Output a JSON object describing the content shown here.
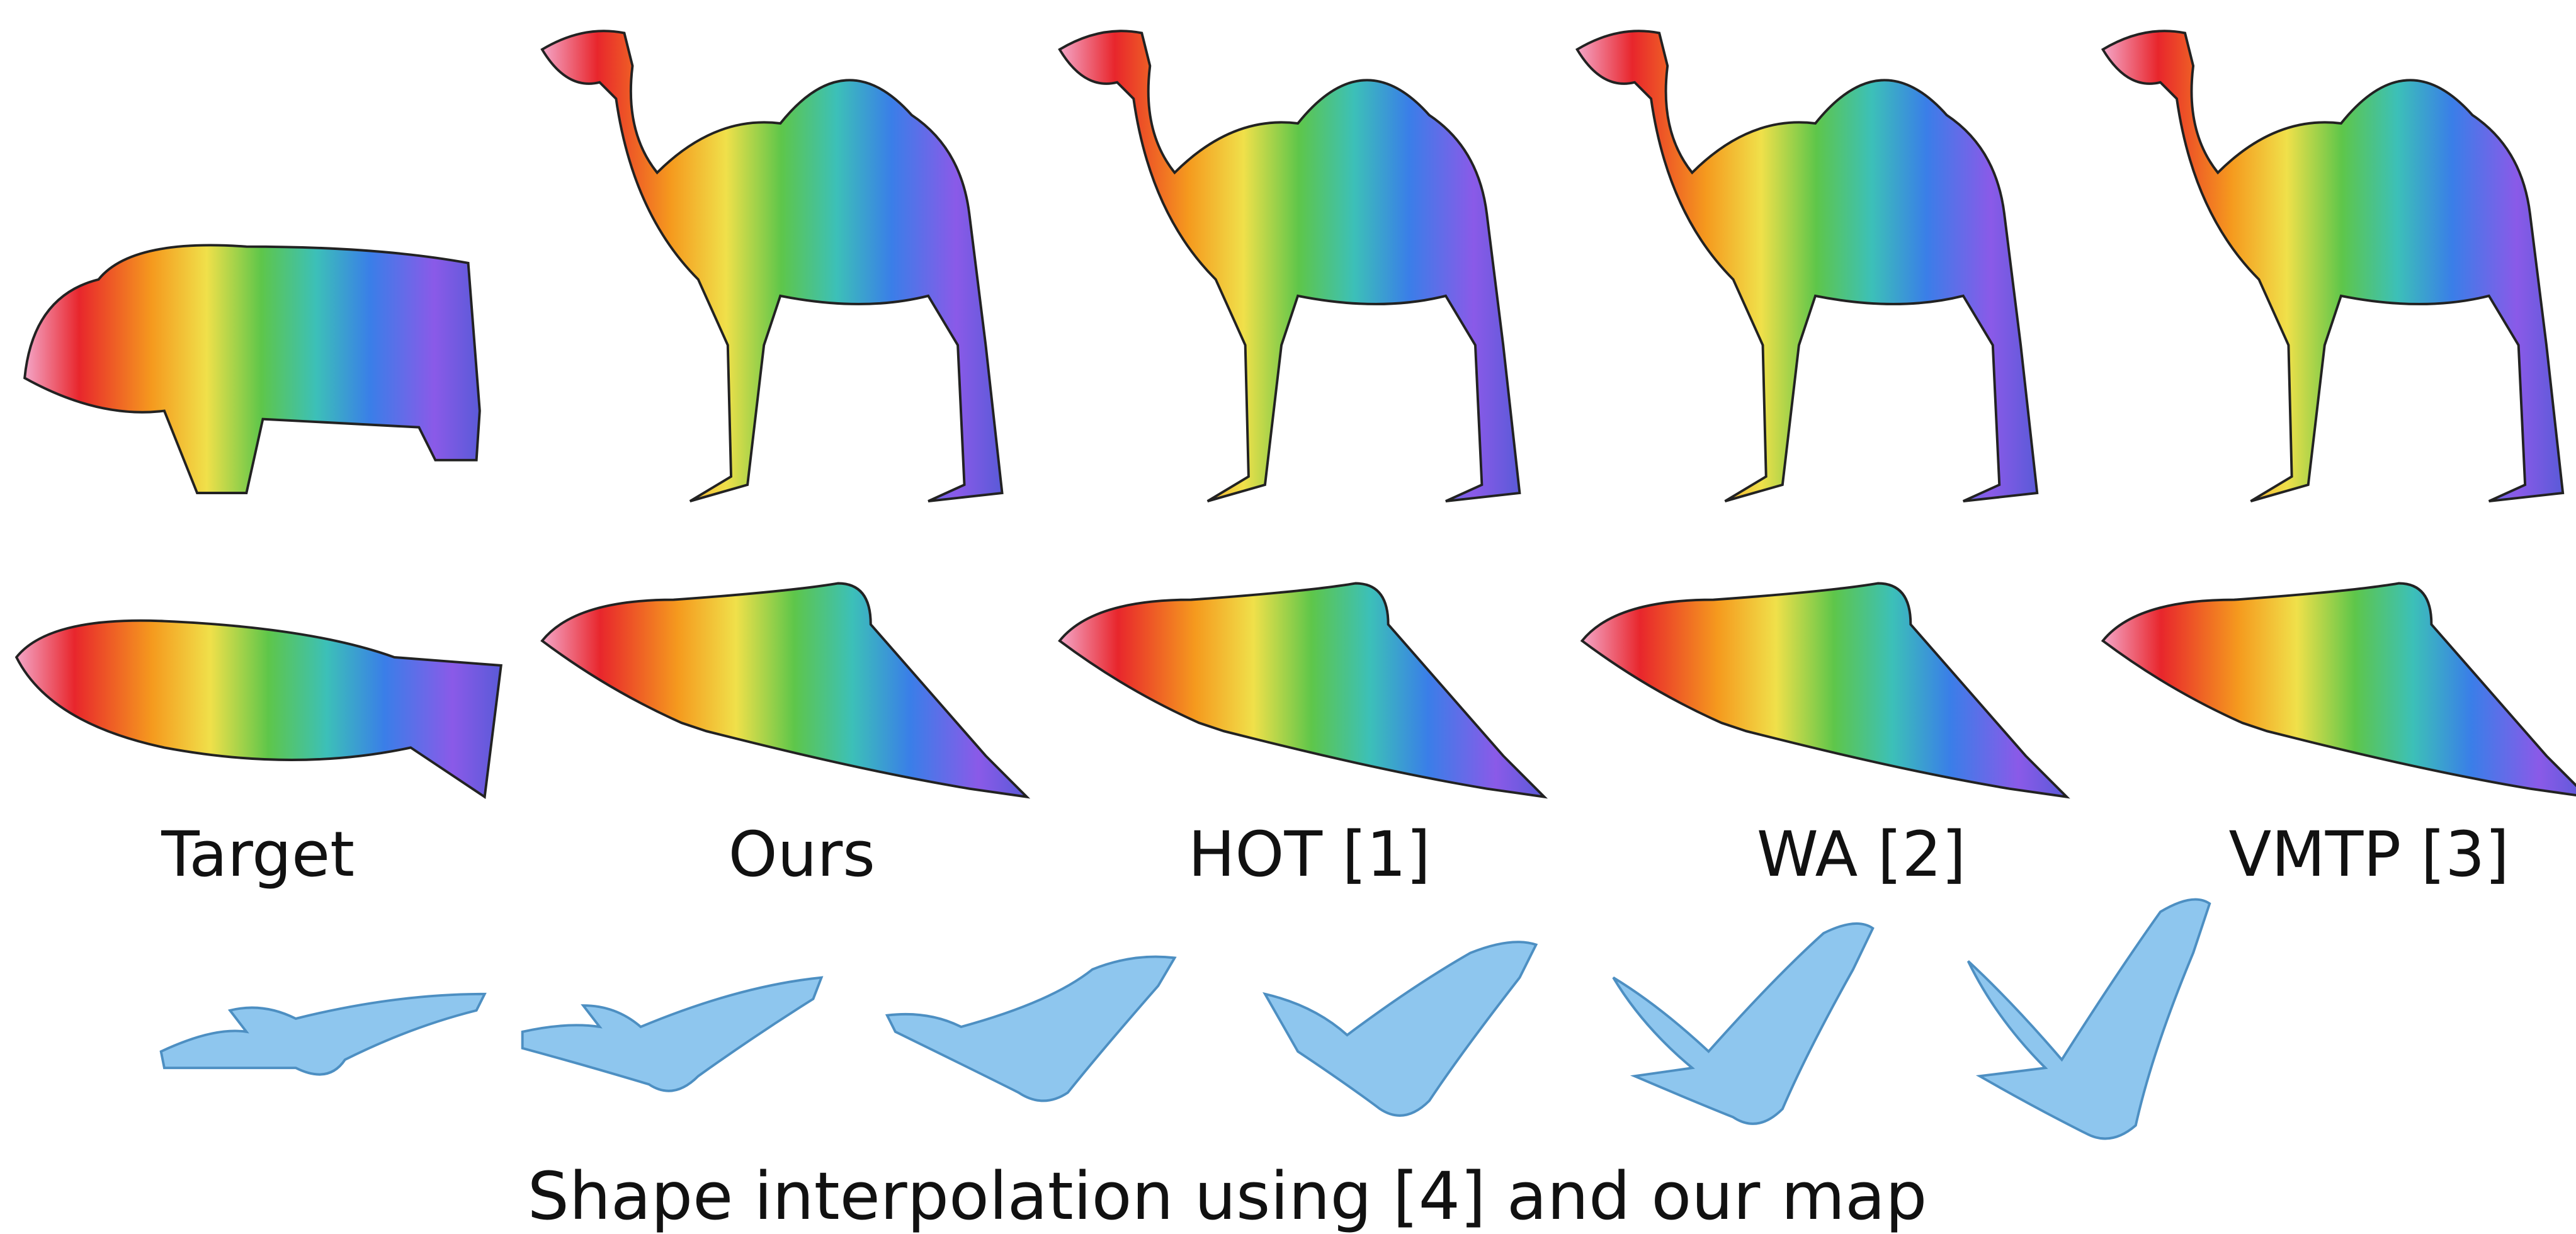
{
  "labels": [
    "Target",
    "Ours",
    "HOT [1]",
    "WA [2]",
    "VMTP [3]"
  ],
  "caption": "Shape interpolation using [4] and our map"
}
